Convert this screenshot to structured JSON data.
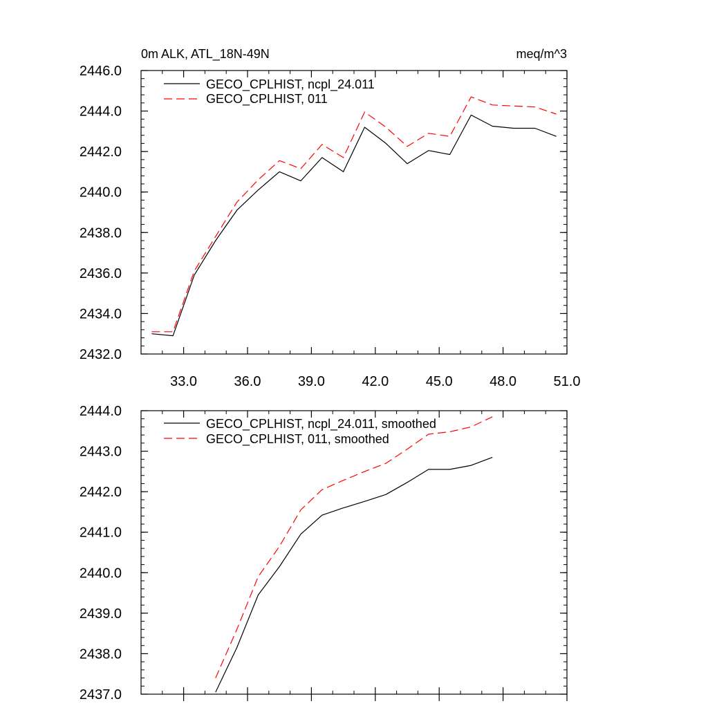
{
  "chart_data": [
    {
      "type": "line",
      "title": "0m ALK, ATL_18N-49N",
      "units": "meq/m^3",
      "xlim": [
        31.0,
        51.0
      ],
      "ylim": [
        2432.0,
        2446.0
      ],
      "xticks": [
        "33.0",
        "36.0",
        "39.0",
        "42.0",
        "45.0",
        "48.0",
        "51.0"
      ],
      "yticks": [
        "2432.0",
        "2434.0",
        "2436.0",
        "2438.0",
        "2440.0",
        "2442.0",
        "2444.0",
        "2446.0"
      ],
      "series": [
        {
          "name": "GECO_CPLHIST, ncpl_24.011",
          "color": "#000000",
          "dash": "solid",
          "x": [
            31.5,
            32.5,
            33.5,
            34.5,
            35.5,
            36.5,
            37.5,
            38.5,
            39.5,
            40.5,
            41.5,
            42.5,
            43.5,
            44.5,
            45.5,
            46.5,
            47.5,
            48.5,
            49.5,
            50.5
          ],
          "y": [
            2433.0,
            2432.9,
            2435.9,
            2437.6,
            2439.1,
            2440.1,
            2441.0,
            2440.55,
            2441.7,
            2441.0,
            2443.2,
            2442.4,
            2441.4,
            2442.05,
            2441.85,
            2443.8,
            2443.25,
            2443.15,
            2443.15,
            2442.75
          ]
        },
        {
          "name": "GECO_CPLHIST, 011",
          "color": "#ff0000",
          "dash": "dashed",
          "x": [
            31.5,
            32.5,
            33.5,
            34.5,
            35.5,
            36.5,
            37.5,
            38.5,
            39.5,
            40.5,
            41.5,
            42.5,
            43.5,
            44.5,
            45.5,
            46.5,
            47.5,
            48.5,
            49.5,
            50.5
          ],
          "y": [
            2433.1,
            2433.1,
            2436.1,
            2437.8,
            2439.5,
            2440.6,
            2441.55,
            2441.15,
            2442.35,
            2441.7,
            2443.95,
            2443.2,
            2442.25,
            2442.9,
            2442.75,
            2444.7,
            2444.3,
            2444.25,
            2444.2,
            2443.85
          ]
        }
      ]
    },
    {
      "type": "line",
      "xlim": [
        31.0,
        51.0
      ],
      "ylim": [
        2437.0,
        2444.0
      ],
      "yticks": [
        "2437.0",
        "2438.0",
        "2439.0",
        "2440.0",
        "2441.0",
        "2442.0",
        "2443.0",
        "2444.0"
      ],
      "series": [
        {
          "name": "GECO_CPLHIST, ncpl_24.011, smoothed",
          "color": "#000000",
          "dash": "solid",
          "x": [
            34.5,
            35.5,
            36.5,
            37.5,
            38.5,
            39.5,
            40.5,
            41.5,
            42.5,
            43.5,
            44.5,
            45.5,
            46.5,
            47.5
          ],
          "y": [
            2437.05,
            2438.15,
            2439.45,
            2440.15,
            2440.95,
            2441.42,
            2441.6,
            2441.76,
            2441.93,
            2442.23,
            2442.55,
            2442.55,
            2442.65,
            2442.85
          ]
        },
        {
          "name": "GECO_CPLHIST, 011, smoothed",
          "color": "#ff0000",
          "dash": "dashed",
          "x": [
            34.5,
            35.5,
            36.5,
            37.5,
            38.5,
            39.5,
            40.5,
            41.5,
            42.5,
            43.5,
            44.5,
            45.5,
            46.5,
            47.5
          ],
          "y": [
            2437.4,
            2438.6,
            2439.9,
            2440.65,
            2441.55,
            2442.05,
            2442.28,
            2442.5,
            2442.7,
            2443.05,
            2443.42,
            2443.48,
            2443.6,
            2443.85
          ]
        }
      ]
    }
  ]
}
